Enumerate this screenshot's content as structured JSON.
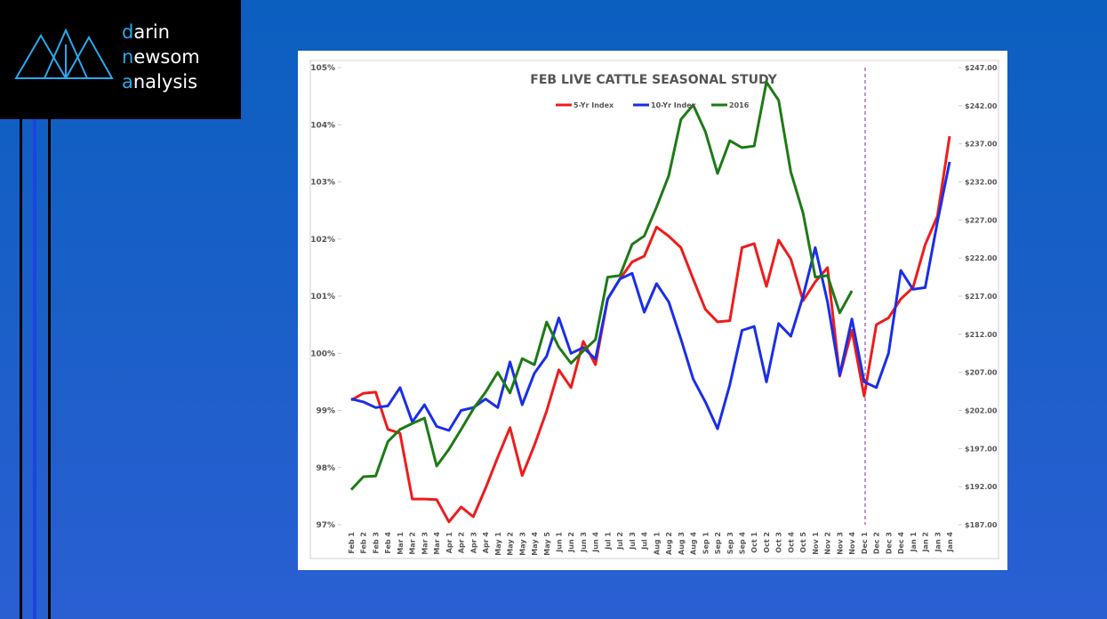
{
  "logo": {
    "lines": [
      "darin",
      "newsom",
      "analysis"
    ]
  },
  "chart_data": {
    "type": "line",
    "title": "FEB LIVE CATTLE SEASONAL STUDY",
    "categories": [
      "Feb 1",
      "Feb 2",
      "Feb 3",
      "Feb 4",
      "Mar 1",
      "Mar 2",
      "Mar 3",
      "Mar 4",
      "Apr 1",
      "Apr 2",
      "Apr 3",
      "Apr 4",
      "May 1",
      "May 2",
      "May 3",
      "May 4",
      "May 5",
      "Jun 1",
      "Jun 2",
      "Jun 3",
      "Jun 4",
      "Jul 1",
      "Jul 2",
      "Jul 3",
      "Jul 4",
      "Aug 1",
      "Aug 2",
      "Aug 3",
      "Aug 4",
      "Sep 1",
      "Sep 2",
      "Sep 3",
      "Sep 4",
      "Oct 1",
      "Oct 2",
      "Oct 3",
      "Oct 4",
      "Oct 5",
      "Nov 1",
      "Nov 2",
      "Nov 3",
      "Nov 4",
      "Dec 1",
      "Dec 2",
      "Dec 3",
      "Dec 4",
      "Jan 1",
      "Jan 2",
      "Jan 3",
      "Jan 4"
    ],
    "series": [
      {
        "name": "5-Yr Index",
        "color": "#ee1c1c",
        "values": [
          99.18,
          99.3,
          99.32,
          98.67,
          98.6,
          97.45,
          97.45,
          97.44,
          97.05,
          97.31,
          97.14,
          97.64,
          98.18,
          98.7,
          97.86,
          98.39,
          98.99,
          99.71,
          99.4,
          100.21,
          99.8,
          100.95,
          101.3,
          101.6,
          101.7,
          102.21,
          102.05,
          101.85,
          101.3,
          100.77,
          100.55,
          100.57,
          101.85,
          101.92,
          101.17,
          101.98,
          101.65,
          100.92,
          101.25,
          101.5,
          99.6,
          100.4,
          99.25,
          100.5,
          100.62,
          100.95,
          101.15,
          101.9,
          102.4,
          103.8
        ]
      },
      {
        "name": "10-Yr Index",
        "color": "#1a2ee8",
        "values": [
          99.2,
          99.15,
          99.05,
          99.08,
          99.4,
          98.8,
          99.1,
          98.72,
          98.65,
          99.0,
          99.05,
          99.2,
          99.05,
          99.85,
          99.1,
          99.65,
          99.95,
          100.62,
          100.0,
          100.1,
          99.9,
          100.95,
          101.3,
          101.4,
          100.72,
          101.22,
          100.9,
          100.25,
          99.55,
          99.15,
          98.68,
          99.45,
          100.4,
          100.47,
          99.5,
          100.52,
          100.3,
          101.0,
          101.85,
          100.9,
          99.62,
          100.6,
          99.5,
          99.4,
          100.0,
          101.45,
          101.12,
          101.15,
          102.3,
          103.35
        ]
      },
      {
        "name": "2016",
        "color": "#1e7a16",
        "axis": "y2",
        "values": [
          191.6,
          193.3,
          193.4,
          197.9,
          199.5,
          200.3,
          201.0,
          194.7,
          196.9,
          199.5,
          202.2,
          204.4,
          207.0,
          204.3,
          208.8,
          208.0,
          213.6,
          210.3,
          208.2,
          209.8,
          211.3,
          219.5,
          219.7,
          223.8,
          224.9,
          228.7,
          232.8,
          240.2,
          242.1,
          238.6,
          233.1,
          237.4,
          236.5,
          236.7,
          245.1,
          242.7,
          233.3,
          227.9,
          219.5,
          219.7,
          214.8,
          217.7,
          null,
          null,
          null,
          null,
          null,
          null,
          null,
          null
        ]
      }
    ],
    "ylim": [
      97,
      105
    ],
    "yticks": [
      {
        "value": 97,
        "label": "97%"
      },
      {
        "value": 98,
        "label": "98%"
      },
      {
        "value": 99,
        "label": "99%"
      },
      {
        "value": 100,
        "label": "100%"
      },
      {
        "value": 101,
        "label": "101%"
      },
      {
        "value": 102,
        "label": "102%"
      },
      {
        "value": 103,
        "label": "103%"
      },
      {
        "value": 104,
        "label": "104%"
      },
      {
        "value": 105,
        "label": "105%"
      }
    ],
    "y2lim": [
      187,
      247
    ],
    "y2ticks": [
      {
        "value": 187,
        "label": "$187.00"
      },
      {
        "value": 192,
        "label": "$192.00"
      },
      {
        "value": 197,
        "label": "$197.00"
      },
      {
        "value": 202,
        "label": "$202.00"
      },
      {
        "value": 207,
        "label": "$207.00"
      },
      {
        "value": 212,
        "label": "$212.00"
      },
      {
        "value": 217,
        "label": "$217.00"
      },
      {
        "value": 222,
        "label": "$222.00"
      },
      {
        "value": 227,
        "label": "$227.00"
      },
      {
        "value": 232,
        "label": "$232.00"
      },
      {
        "value": 237,
        "label": "$237.00"
      },
      {
        "value": 242,
        "label": "$242.00"
      },
      {
        "value": 247,
        "label": "$247.00"
      }
    ],
    "grid": false,
    "legend": "top"
  }
}
